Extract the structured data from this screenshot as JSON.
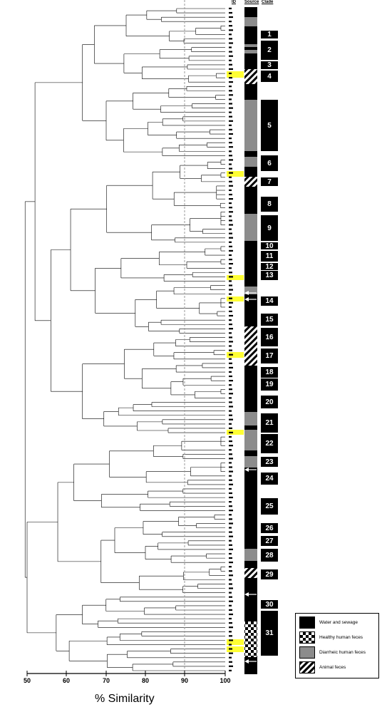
{
  "headers": {
    "id": "ID",
    "source": "Source",
    "clade": "Clade"
  },
  "axis": {
    "title": "% Similarity",
    "ticks": [
      "50",
      "60",
      "70",
      "80",
      "90",
      "100"
    ]
  },
  "clades": [
    "1",
    "2",
    "3",
    "4",
    "5",
    "6",
    "7",
    "8",
    "9",
    "10",
    "11",
    "12",
    "13",
    "14",
    "15",
    "16",
    "17",
    "18",
    "19",
    "20",
    "21",
    "22",
    "23",
    "24",
    "25",
    "26",
    "27",
    "28",
    "29",
    "30",
    "31"
  ],
  "legend": [
    {
      "label": "Water and sewage"
    },
    {
      "label": "Healthy human feces"
    },
    {
      "label": "Diarrheic human feces"
    },
    {
      "label": "Animal feces"
    }
  ],
  "colors": {
    "water": "#000000",
    "diarrheic": "#8c8c8c",
    "highlight": "#ffff33",
    "guide": "#999999"
  }
}
